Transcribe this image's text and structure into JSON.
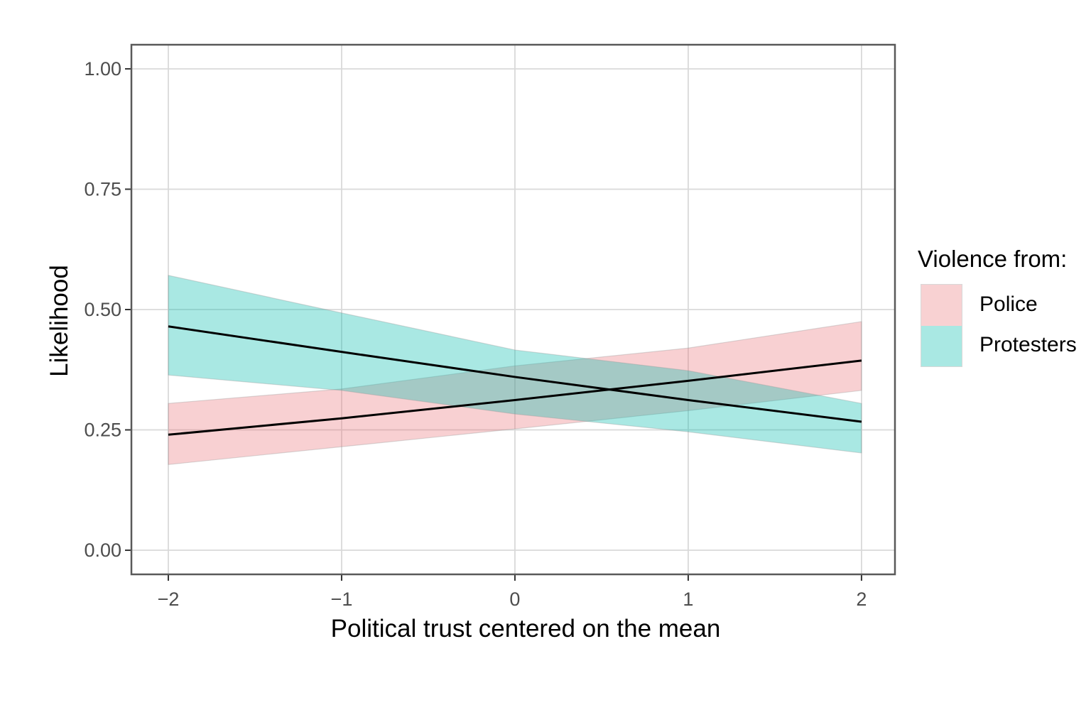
{
  "chart_data": {
    "type": "line",
    "title": "",
    "xlabel": "Political trust centered on the mean",
    "ylabel": "Likelihood",
    "xlim": [
      -2.213,
      2.193
    ],
    "ylim": [
      -0.0501,
      1.0501
    ],
    "grid": "major-only",
    "legend_position": "right",
    "x_ticks": {
      "values": [
        -2,
        -1,
        0,
        1,
        2
      ],
      "labels": [
        "−2",
        "−1",
        "0",
        "1",
        "2"
      ]
    },
    "y_ticks": {
      "values": [
        0,
        0.25,
        0.5,
        0.75,
        1
      ],
      "labels": [
        "0.00",
        "0.25",
        "0.50",
        "0.75",
        "1.00"
      ]
    },
    "x": [
      -2,
      -1,
      0,
      1,
      2
    ],
    "series": [
      {
        "name": "Police",
        "line": [
          0.24,
          0.274,
          0.312,
          0.352,
          0.394
        ],
        "ribbon_upper": [
          0.305,
          0.335,
          0.383,
          0.42,
          0.475
        ],
        "ribbon_lower": [
          0.178,
          0.215,
          0.252,
          0.29,
          0.332
        ],
        "ribbon_color": "#E96C72",
        "ribbon_opacity": 0.32,
        "line_color": "#000000"
      },
      {
        "name": "Protesters",
        "line": [
          0.465,
          0.412,
          0.36,
          0.312,
          0.267
        ],
        "ribbon_upper": [
          0.571,
          0.493,
          0.416,
          0.373,
          0.305
        ],
        "ribbon_lower": [
          0.364,
          0.332,
          0.283,
          0.246,
          0.202
        ],
        "ribbon_color": "#02BBAD",
        "ribbon_opacity": 0.34,
        "line_color": "#000000"
      }
    ]
  },
  "axes": {
    "x_title": "Political trust centered on the mean",
    "y_title": "Likelihood"
  },
  "legend": {
    "title": "Violence from:",
    "items": [
      {
        "label": "Police",
        "swatch_color": "#F8D1D2"
      },
      {
        "label": "Protesters",
        "swatch_color": "#A9E8E3"
      }
    ]
  },
  "style": {
    "background": "#FFFFFF",
    "grid_color": "#D9D9D9",
    "panel_border_color": "#595959",
    "tick_color": "#333333",
    "tick_label_color": "#4D4D4D",
    "title_color": "#000000",
    "ribbon_edge_color": "#999999"
  }
}
